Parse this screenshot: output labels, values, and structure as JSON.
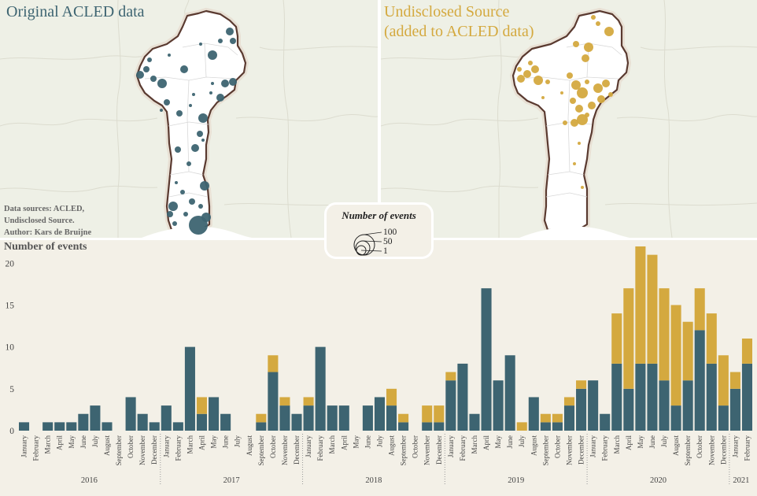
{
  "maps": {
    "left_title": "Original ACLED data",
    "right_title_line1": "Undisclosed Source",
    "right_title_line2": "(added to ACLED data)",
    "left_color": "#3d6471",
    "right_color": "#d4a93f"
  },
  "credits": {
    "line1": "Data sources: ACLED,",
    "line2": "Undisclosed Source.",
    "line3": "Author: Kars de Bruijne"
  },
  "legend": {
    "title": "Number of events",
    "values": [
      "100",
      "50",
      "1"
    ]
  },
  "chart_data": {
    "type": "bar",
    "stacked": true,
    "title": "Number of events",
    "ylabel": "Number of events",
    "ylim": [
      0,
      22
    ],
    "yticks": [
      0,
      5,
      10,
      15,
      20
    ],
    "categories": [
      "January",
      "February",
      "March",
      "April",
      "May",
      "June",
      "July",
      "August",
      "September",
      "October",
      "November",
      "December",
      "January",
      "February",
      "March",
      "April",
      "May",
      "June",
      "July",
      "August",
      "September",
      "October",
      "November",
      "December",
      "January",
      "February",
      "March",
      "April",
      "May",
      "June",
      "July",
      "August",
      "September",
      "October",
      "November",
      "December",
      "January",
      "February",
      "March",
      "April",
      "May",
      "June",
      "July",
      "August",
      "September",
      "October",
      "November",
      "December",
      "January",
      "February",
      "March",
      "April",
      "May",
      "June",
      "July",
      "August",
      "September",
      "October",
      "November",
      "December",
      "January",
      "February"
    ],
    "years": [
      {
        "label": "2016",
        "start": 0,
        "count": 12
      },
      {
        "label": "2017",
        "start": 12,
        "count": 12
      },
      {
        "label": "2018",
        "start": 24,
        "count": 12
      },
      {
        "label": "2019",
        "start": 36,
        "count": 12
      },
      {
        "label": "2020",
        "start": 48,
        "count": 12
      },
      {
        "label": "2021",
        "start": 60,
        "count": 2
      }
    ],
    "series": [
      {
        "name": "Original ACLED data",
        "color": "#3d6471",
        "values": [
          1,
          0,
          1,
          1,
          1,
          2,
          3,
          1,
          0,
          4,
          2,
          1,
          3,
          1,
          10,
          2,
          4,
          2,
          0,
          0,
          1,
          7,
          3,
          2,
          3,
          10,
          3,
          3,
          0,
          3,
          4,
          3,
          1,
          0,
          1,
          1,
          6,
          8,
          2,
          17,
          6,
          9,
          0,
          4,
          1,
          1,
          3,
          5,
          6,
          2,
          8,
          5,
          8,
          8,
          6,
          3,
          6,
          12,
          8,
          3,
          5,
          8
        ]
      },
      {
        "name": "Undisclosed Source (added to ACLED data)",
        "color": "#d4a93f",
        "values": [
          0,
          0,
          0,
          0,
          0,
          0,
          0,
          0,
          0,
          0,
          0,
          0,
          0,
          0,
          0,
          2,
          0,
          0,
          0,
          0,
          1,
          2,
          1,
          0,
          1,
          0,
          0,
          0,
          0,
          0,
          0,
          2,
          1,
          0,
          2,
          2,
          1,
          0,
          0,
          0,
          0,
          0,
          1,
          0,
          1,
          1,
          1,
          1,
          0,
          0,
          6,
          12,
          14,
          13,
          11,
          12,
          7,
          5,
          6,
          6,
          2,
          3
        ]
      }
    ],
    "grid": false
  }
}
